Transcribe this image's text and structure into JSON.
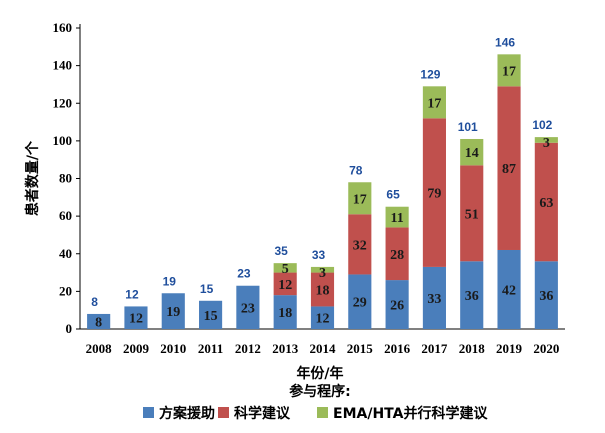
{
  "chart_data": {
    "type": "bar",
    "stacked": true,
    "categories": [
      "2008",
      "2009",
      "2010",
      "2011",
      "2012",
      "2013",
      "2014",
      "2015",
      "2016",
      "2017",
      "2018",
      "2019",
      "2020"
    ],
    "series": [
      {
        "name": "方案援助",
        "color": "#4a7ebb",
        "values": [
          8,
          12,
          19,
          15,
          23,
          18,
          12,
          29,
          26,
          33,
          36,
          42,
          36
        ]
      },
      {
        "name": "科学建议",
        "color": "#c0504d",
        "values": [
          0,
          0,
          0,
          0,
          0,
          12,
          18,
          32,
          28,
          79,
          51,
          87,
          63
        ]
      },
      {
        "name": "EMA/HTA并行科学建议",
        "color": "#9bbb59",
        "values": [
          0,
          0,
          0,
          0,
          0,
          5,
          3,
          17,
          11,
          17,
          14,
          17,
          3
        ]
      }
    ],
    "totals": [
      8,
      12,
      19,
      15,
      23,
      35,
      33,
      78,
      65,
      129,
      101,
      146,
      102
    ],
    "ylabel": "患者数量/个",
    "xlabel": "年份/年",
    "legend_title": "参与程序:",
    "ylim": [
      0,
      160
    ],
    "yticks": [
      0,
      20,
      40,
      60,
      80,
      100,
      120,
      140,
      160
    ],
    "legend_position": "bottom"
  }
}
